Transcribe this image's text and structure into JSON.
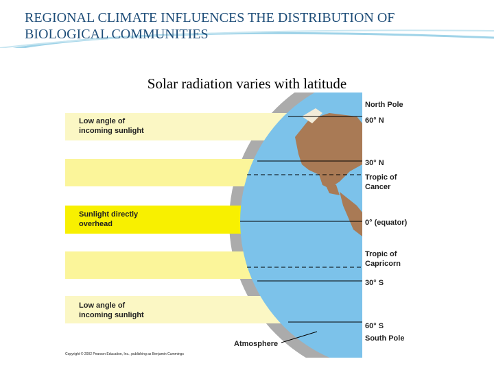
{
  "header": {
    "title": "REGIONAL CLIMATE INFLUENCES THE DISTRIBUTION OF BIOLOGICAL COMMUNITIES",
    "subtitle": "Solar radiation varies with latitude"
  },
  "diagram": {
    "sunlight_labels": [
      "Low angle of incoming sunlight",
      "Sunlight directly overhead",
      "Low angle of incoming sunlight"
    ],
    "latitude_labels": [
      "North Pole",
      "60° N",
      "30° N",
      "Tropic of Cancer",
      "0° (equator)",
      "Tropic of Capricorn",
      "30° S",
      "60° S",
      "South Pole"
    ],
    "atmosphere_label": "Atmosphere",
    "copyright": "Copyright © 2002 Pearson Education, Inc., publishing as Benjamin Cummings"
  }
}
